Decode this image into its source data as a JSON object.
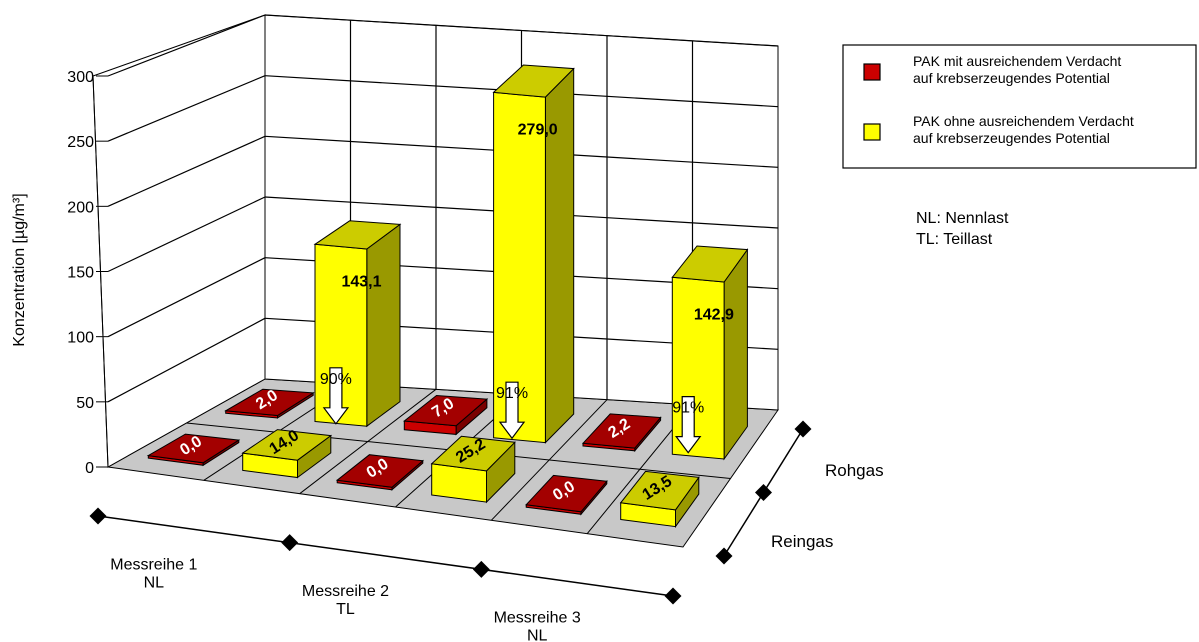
{
  "chart_data": {
    "type": "bar",
    "ylabel": "Konzentration [µg/m³]",
    "ylim": [
      0,
      300
    ],
    "yticks": [
      0,
      50,
      100,
      150,
      200,
      250,
      300
    ],
    "grid": true,
    "legend_position": "top-right",
    "categories": [
      {
        "line1": "Messreihe 1",
        "line2": "NL"
      },
      {
        "line1": "Messreihe 2",
        "line2": "TL"
      },
      {
        "line1": "Messreihe 3",
        "line2": "NL"
      }
    ],
    "depth_categories": [
      "Rohgas",
      "Reingas"
    ],
    "series": [
      {
        "name": "PAK mit ausreichendem Verdacht auf krebserzeugendes Potential",
        "legend_lines": [
          "PAK mit ausreichendem Verdacht",
          "auf krebserzeugendes Potential"
        ],
        "color": "#cc0000",
        "rohgas": [
          2.0,
          7.0,
          2.2
        ],
        "reingas": [
          0.0,
          0.0,
          0.0
        ],
        "rohgas_labels": [
          "2,0",
          "7,0",
          "2,2"
        ],
        "reingas_labels": [
          "0,0",
          "0,0",
          "0,0"
        ]
      },
      {
        "name": "PAK ohne ausreichendem Verdacht auf krebserzeugendes Potential",
        "legend_lines": [
          "PAK ohne ausreichendem Verdacht",
          "auf krebserzeugendes Potential"
        ],
        "color": "#ffff00",
        "rohgas": [
          143.1,
          279.0,
          142.9
        ],
        "reingas": [
          14.0,
          25.2,
          13.5
        ],
        "rohgas_labels": [
          "143,1",
          "279,0",
          "142,9"
        ],
        "reingas_labels": [
          "14,0",
          "25,2",
          "13,5"
        ]
      }
    ],
    "reduction_annotations": [
      "90%",
      "91%",
      "91%"
    ],
    "notes": [
      "NL: Nennlast",
      "TL: Teillast"
    ]
  }
}
